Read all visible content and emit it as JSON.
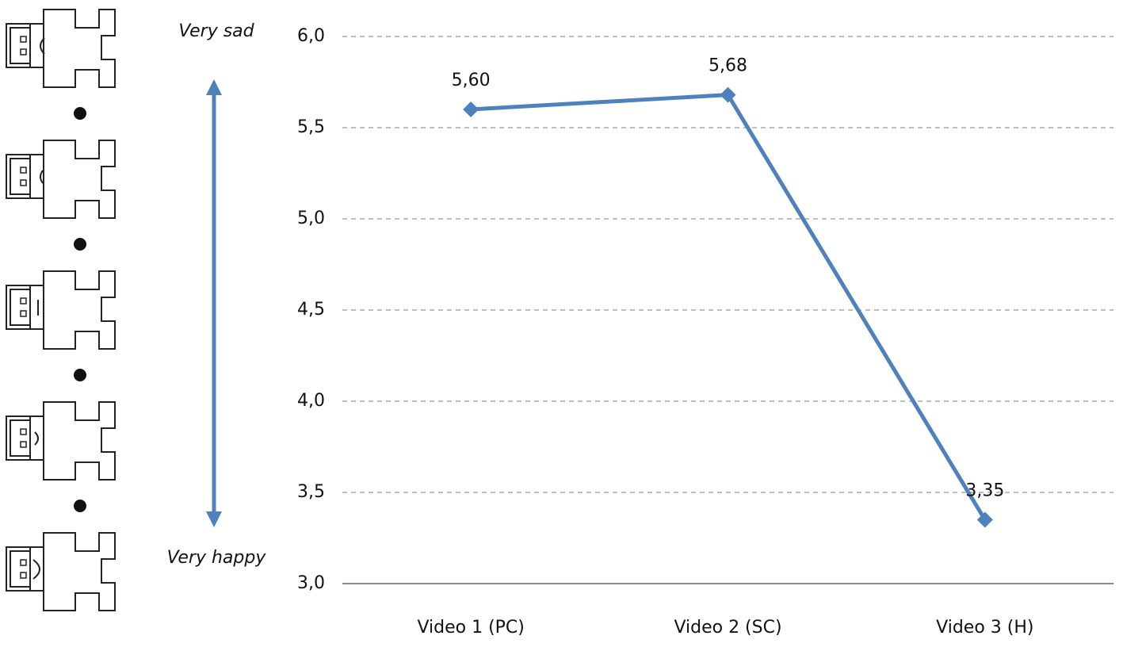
{
  "chart_data": {
    "type": "line",
    "annotations": [
      "Very sad",
      "Very happy"
    ],
    "categories": [
      "Video 1 (PC)",
      "Video 2 (SC)",
      "Video 3 (H)"
    ],
    "series": [
      {
        "values": [
          5.6,
          5.68,
          3.35
        ],
        "value_labels": [
          "5,60",
          "5,68",
          "3,35"
        ],
        "color": "#4f81bd"
      }
    ],
    "ylim": [
      3,
      6
    ],
    "yticks": [
      {
        "value": 3,
        "label": "3,0"
      },
      {
        "value": 3.5,
        "label": "3,5"
      },
      {
        "value": 4,
        "label": "4,0"
      },
      {
        "value": 4.5,
        "label": "4,5"
      },
      {
        "value": 5,
        "label": "5,0"
      },
      {
        "value": 5.5,
        "label": "5,5"
      },
      {
        "value": 6,
        "label": "6,0"
      }
    ],
    "grid": true
  }
}
